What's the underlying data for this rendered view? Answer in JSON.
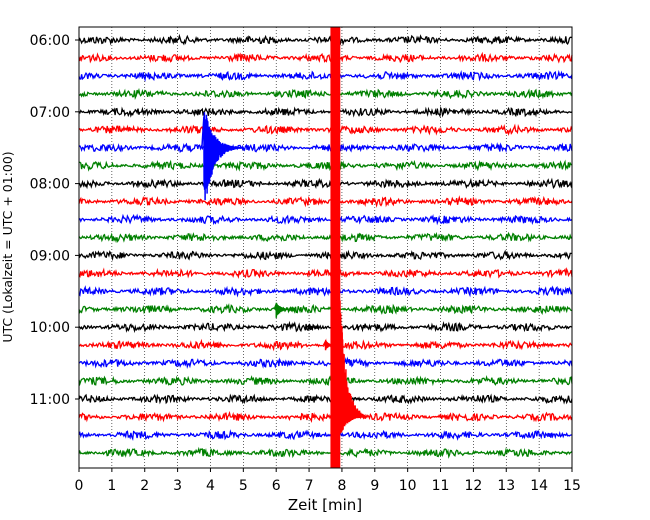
{
  "chart_data": {
    "type": "line",
    "subtype": "helicorder",
    "xlabel": "Zeit  [min]",
    "ylabel": "UTC (Lokalzeit = UTC + 01:00)",
    "xlim": [
      0,
      15
    ],
    "x_ticks": [
      "0",
      "1",
      "2",
      "3",
      "4",
      "5",
      "6",
      "7",
      "8",
      "9",
      "10",
      "11",
      "12",
      "13",
      "14",
      "15"
    ],
    "row_minutes": 15,
    "rows_start": "06:00",
    "row_count": 24,
    "y_tick_labels": [
      "06:00",
      "07:00",
      "08:00",
      "09:00",
      "10:00",
      "11:00"
    ],
    "y_tick_rows": [
      0,
      4,
      8,
      12,
      16,
      20
    ],
    "grid": "vertical dotted at each minute",
    "trace_colors": [
      "#000000",
      "#ff0000",
      "#0000ff",
      "#008000"
    ],
    "events": [
      {
        "row": 6,
        "onset_min": 3.8,
        "peak_up_rows": 2.5,
        "peak_down_rows": 3.8,
        "coda_min": 1.2
      },
      {
        "row": 15,
        "onset_min": 6.0,
        "peak_up_rows": 0.4,
        "peak_down_rows": 0.5,
        "coda_min": 0.6
      },
      {
        "row": 16,
        "onset_min": 7.0,
        "peak_up_rows": 0.2,
        "peak_down_rows": 0.2,
        "coda_min": 0.3
      },
      {
        "row": 17,
        "onset_min": 7.5,
        "peak_up_rows": 0.3,
        "peak_down_rows": 0.3,
        "coda_min": 0.4
      },
      {
        "row": 21,
        "onset_min": 7.75,
        "peak_up_rows": 18,
        "peak_down_rows": 3,
        "coda_min": 0.9,
        "saturated_band_min": [
          7.65,
          7.95
        ]
      }
    ]
  }
}
